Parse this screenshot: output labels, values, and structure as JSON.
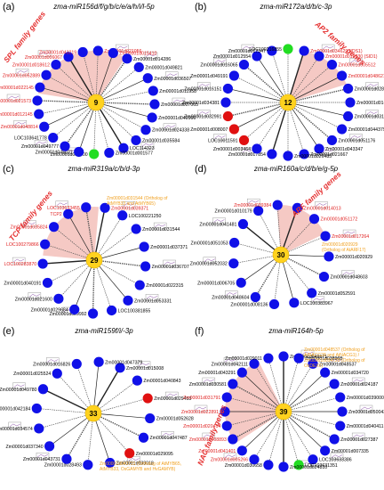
{
  "colors": {
    "hub": "#ffd21e",
    "node": "#1010e8",
    "node_red": "#e01010",
    "node_green": "#22dd22",
    "wedge": "#f2b7b0",
    "label_black": "#000000",
    "label_red": "#e02020",
    "label_orange": "#f0a020"
  },
  "panels": [
    {
      "letter": "(a)",
      "title": "zma-miR156d/f/g/b/c/e/a/h/i/l-5p",
      "hub_label": "9",
      "family_label": "SPL family genes",
      "family_rotation": -52,
      "ortholog_note": "",
      "nodes": [
        {
          "label": "Zm00001d006067",
          "color": "blue",
          "highlight": true
        },
        {
          "label": "Zm00001d043219",
          "color": "blue",
          "highlight": true
        },
        {
          "label": "Zm00001d021056",
          "color": "blue",
          "highlight": true
        },
        {
          "label": "Zm00001d015410",
          "color": "blue",
          "highlight": true
        },
        {
          "label": "Zm00001d014286",
          "color": "blue",
          "highlight": false
        },
        {
          "label": "Zm00001d049821",
          "color": "blue",
          "highlight": false
        },
        {
          "label": "Zm00001d036507",
          "color": "blue",
          "highlight": false
        },
        {
          "label": "Zm00001d011958",
          "color": "blue",
          "highlight": false
        },
        {
          "label": "Zm00001d007065",
          "color": "blue",
          "highlight": false
        },
        {
          "label": "Zm00001d049900",
          "color": "blue",
          "highlight": false
        },
        {
          "label": "Zm00001d024338",
          "color": "blue",
          "highlight": false
        },
        {
          "label": "Zm00001d035584",
          "color": "blue",
          "highlight": false
        },
        {
          "label": "LOC114323",
          "color": "blue",
          "highlight": false
        },
        {
          "label": "Zm00001d001577",
          "color": "blue",
          "highlight": false
        },
        {
          "label": "Zm00001d050000",
          "color": "green",
          "highlight": false
        },
        {
          "label": "Zm00001d045037",
          "color": "blue",
          "highlight": false
        },
        {
          "label": "Zm00001d049777",
          "color": "blue",
          "highlight": false
        },
        {
          "label": "LOC103641778",
          "color": "blue",
          "highlight": false
        },
        {
          "label": "Zm00001d048814",
          "color": "blue",
          "highlight": true
        },
        {
          "label": "Zm00001d012145",
          "color": "blue",
          "highlight": true
        },
        {
          "label": "Zm00001d021573",
          "color": "blue",
          "highlight": true
        },
        {
          "label": "Zm00001d022145",
          "color": "blue",
          "highlight": true
        },
        {
          "label": "Zm00001d052889",
          "color": "blue",
          "highlight": true
        },
        {
          "label": "Zm00001d018612",
          "color": "blue",
          "highlight": true
        }
      ]
    },
    {
      "letter": "(b)",
      "title": "zma-miR172a/d/b/c-3p",
      "hub_label": "12",
      "family_label": "AP2 family genes",
      "family_rotation": 40,
      "ortholog_note": "",
      "nodes": [
        {
          "label": "Zm00001d034629 (IDS1)",
          "color": "blue",
          "highlight": true
        },
        {
          "label": "Zm00001d019230 (SID1)",
          "color": "blue",
          "highlight": true
        },
        {
          "label": "Zm00001d005512",
          "color": "blue",
          "highlight": true
        },
        {
          "label": "Zm00001d048621 (AP2)",
          "color": "blue",
          "highlight": true
        },
        {
          "label": "Zm00001d028778",
          "color": "blue",
          "highlight": false
        },
        {
          "label": "Zm00001d014268",
          "color": "blue",
          "highlight": false
        },
        {
          "label": "Zm00001d031822",
          "color": "blue",
          "highlight": false
        },
        {
          "label": "Zm00001d044379",
          "color": "blue",
          "highlight": false
        },
        {
          "label": "Zm00001d051176",
          "color": "blue",
          "highlight": false
        },
        {
          "label": "Zm00001d043347",
          "color": "blue",
          "highlight": false
        },
        {
          "label": "Zm00001d021667",
          "color": "blue",
          "highlight": false
        },
        {
          "label": "Zm00001d026485",
          "color": "blue",
          "highlight": false
        },
        {
          "label": "Zm00001d017854",
          "color": "blue",
          "highlight": false
        },
        {
          "label": "Zm00001d003464",
          "color": "blue",
          "highlight": false
        },
        {
          "label": "LOC10011591",
          "color": "red",
          "highlight": false
        },
        {
          "label": "Zm00001d008007",
          "color": "red",
          "highlight": false
        },
        {
          "label": "Zm00001d032991",
          "color": "red",
          "highlight": false
        },
        {
          "label": "Zm00001d034381",
          "color": "blue",
          "highlight": false
        },
        {
          "label": "Zm00001d016151",
          "color": "blue",
          "highlight": false
        },
        {
          "label": "Zm00001d049191",
          "color": "blue",
          "highlight": false
        },
        {
          "label": "Zm00001d016065",
          "color": "blue",
          "highlight": false
        },
        {
          "label": "Zm00001d012554",
          "color": "blue",
          "highlight": false
        },
        {
          "label": "Zm00001d017347",
          "color": "blue",
          "highlight": false
        },
        {
          "label": "LOC100216855",
          "color": "green",
          "highlight": false
        }
      ]
    },
    {
      "letter": "(c)",
      "title": "zma-miR319a/c/b/d-3p",
      "hub_label": "29",
      "family_label": "TCP family genes",
      "family_rotation": -50,
      "ortholog_note": "Zm00001d031544 (Ortholog of AtMYB33 and AtMYB65)",
      "nodes": [
        {
          "label": "Zm00001d039371",
          "color": "blue",
          "highlight": true
        },
        {
          "label": "LOC100221250",
          "color": "blue",
          "highlight": false
        },
        {
          "label": "Zm00001d031544",
          "color": "blue",
          "highlight": false
        },
        {
          "label": "Zm00001d037371",
          "color": "blue",
          "highlight": false
        },
        {
          "label": "Zm00001d036707",
          "color": "blue",
          "highlight": false
        },
        {
          "label": "Zm00001d022315",
          "color": "blue",
          "highlight": false
        },
        {
          "label": "Zm00001d053331",
          "color": "blue",
          "highlight": false
        },
        {
          "label": "LOC100381855",
          "color": "blue",
          "highlight": false
        },
        {
          "label": "Zm00001d029992",
          "color": "blue",
          "highlight": false
        },
        {
          "label": "Zm00001d029684",
          "color": "blue",
          "highlight": false
        },
        {
          "label": "Zm00001d021600",
          "color": "blue",
          "highlight": false
        },
        {
          "label": "Zm00001d040191",
          "color": "blue",
          "highlight": false
        },
        {
          "label": "LOC100283870",
          "color": "blue",
          "highlight": true
        },
        {
          "label": "LOC100279866",
          "color": "blue",
          "highlight": true
        },
        {
          "label": "Zm00001d035824",
          "color": "blue",
          "highlight": true
        },
        {
          "label": "TCP2",
          "color": "blue",
          "highlight": true
        },
        {
          "label": "LOC103633455",
          "color": "blue",
          "highlight": true
        }
      ]
    },
    {
      "letter": "(d)",
      "title": "zma-miR160a/c/d/b/e/g-5p",
      "hub_label": "30",
      "family_label": "ARF family genes",
      "family_rotation": -42,
      "ortholog_note": "Zm00001d020929 (Ortholog of AtARF17)",
      "nodes": [
        {
          "label": "Zm00001d014013",
          "color": "blue",
          "highlight": true
        },
        {
          "label": "Zm00001d051172",
          "color": "blue",
          "highlight": true
        },
        {
          "label": "Zm00001d017264",
          "color": "blue",
          "highlight": true
        },
        {
          "label": "Zm00001d020929",
          "color": "blue",
          "highlight": false
        },
        {
          "label": "Zm00001d048603",
          "color": "blue",
          "highlight": false
        },
        {
          "label": "Zm00001d052591",
          "color": "blue",
          "highlight": false
        },
        {
          "label": "LOC100383967",
          "color": "blue",
          "highlight": false
        },
        {
          "label": "Zm00001d008136",
          "color": "blue",
          "highlight": false
        },
        {
          "label": "Zm00001d048604",
          "color": "blue",
          "highlight": false
        },
        {
          "label": "Zm00001d006705",
          "color": "blue",
          "highlight": false
        },
        {
          "label": "Zm00001d052032",
          "color": "blue",
          "highlight": false
        },
        {
          "label": "Zm00001d051053",
          "color": "blue",
          "highlight": false
        },
        {
          "label": "Zm00001d041481",
          "color": "blue",
          "highlight": false
        },
        {
          "label": "Zm00001d010179",
          "color": "blue",
          "highlight": false
        },
        {
          "label": "Zm00001d039384",
          "color": "blue",
          "highlight": true
        }
      ]
    },
    {
      "letter": "(e)",
      "title": "zma-miR159f/i/-3p",
      "hub_label": "33",
      "family_label": "",
      "family_rotation": 0,
      "ortholog_note": "Zm00001d043731 (Ortholog of AtMYB65, AtMYB33, OsGAMYB and HvGAMYB)",
      "nodes": [
        {
          "label": "Zm00001d015008",
          "color": "blue",
          "highlight": false
        },
        {
          "label": "Zm00001d040843",
          "color": "blue",
          "highlight": false
        },
        {
          "label": "Zm00001d029453",
          "color": "red",
          "highlight": false
        },
        {
          "label": "Zm00001d052628",
          "color": "blue",
          "highlight": false
        },
        {
          "label": "Zm00001d047487",
          "color": "blue",
          "highlight": false
        },
        {
          "label": "Zm00001d029095",
          "color": "red",
          "highlight": false
        },
        {
          "label": "Zm00001d038018",
          "color": "blue",
          "highlight": false
        },
        {
          "label": "Zm00001d028493",
          "color": "blue",
          "highlight": false
        },
        {
          "label": "Zm00001d043731",
          "color": "blue",
          "highlight": false
        },
        {
          "label": "Zm00001d037340",
          "color": "blue",
          "highlight": false
        },
        {
          "label": "Zm00001d034574",
          "color": "blue",
          "highlight": false
        },
        {
          "label": "Zm00001d042184",
          "color": "blue",
          "highlight": false
        },
        {
          "label": "Zm00001d049780",
          "color": "blue",
          "highlight": false
        },
        {
          "label": "Zm00001d025524",
          "color": "blue",
          "highlight": false
        },
        {
          "label": "Zm00001d016826",
          "color": "blue",
          "highlight": false
        },
        {
          "label": "Zm00001d047379",
          "color": "blue",
          "highlight": false
        }
      ]
    },
    {
      "letter": "(f)",
      "title": "zma-miR164h-5p",
      "hub_label": "39",
      "family_label": "NAC family genes",
      "family_rotation": -68,
      "ortholog_note": "Zm00001d048537 (Ortholog of AtNACG28 and AtNACG1) / Zm00001d034720 (Ortholog of OsDEX1)",
      "nodes": [
        {
          "label": "Zm00001d049171",
          "color": "blue",
          "highlight": false
        },
        {
          "label": "Zm00001d038968",
          "color": "blue",
          "highlight": false
        },
        {
          "label": "Zm00001d048537",
          "color": "blue",
          "highlight": false
        },
        {
          "label": "Zm00001d034720",
          "color": "blue",
          "highlight": false
        },
        {
          "label": "Zm00001d024187",
          "color": "blue",
          "highlight": false
        },
        {
          "label": "Zm00001d039000",
          "color": "blue",
          "highlight": false
        },
        {
          "label": "Zm00001d050043",
          "color": "blue",
          "highlight": false
        },
        {
          "label": "Zm00001d040411",
          "color": "blue",
          "highlight": false
        },
        {
          "label": "Zm00001d027387",
          "color": "blue",
          "highlight": false
        },
        {
          "label": "Zm00001d007335",
          "color": "blue",
          "highlight": false
        },
        {
          "label": "LOC103633386",
          "color": "blue",
          "highlight": false
        },
        {
          "label": "LOC103631351",
          "color": "green",
          "highlight": false
        },
        {
          "label": "Zm00001d024810",
          "color": "blue",
          "highlight": false
        },
        {
          "label": "Zm00001d030658",
          "color": "blue",
          "highlight": false
        },
        {
          "label": "Zm00001d005266",
          "color": "blue",
          "highlight": true
        },
        {
          "label": "Zm00001d041401",
          "color": "blue",
          "highlight": true
        },
        {
          "label": "Zm00001d008893",
          "color": "blue",
          "highlight": true
        },
        {
          "label": "Zm00001d020414",
          "color": "blue",
          "highlight": true
        },
        {
          "label": "Zm00001d022891",
          "color": "blue",
          "highlight": true
        },
        {
          "label": "Zm00001d031791",
          "color": "blue",
          "highlight": true
        },
        {
          "label": "Zm00001d030581",
          "color": "blue",
          "highlight": false
        },
        {
          "label": "Zm00001d043291",
          "color": "blue",
          "highlight": false
        },
        {
          "label": "Zm00001d042111",
          "color": "blue",
          "highlight": false
        },
        {
          "label": "Zm00001d029011",
          "color": "blue",
          "highlight": false
        }
      ]
    }
  ]
}
